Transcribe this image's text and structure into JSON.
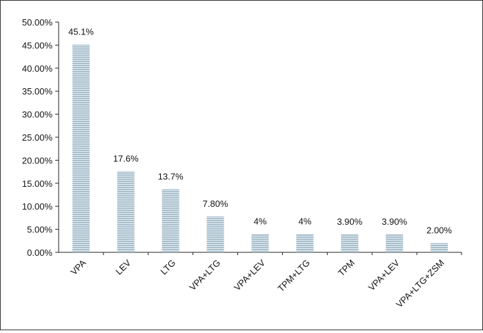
{
  "chart_data": {
    "type": "bar",
    "title": "",
    "xlabel": "",
    "ylabel": "",
    "ylim": [
      0,
      50
    ],
    "y_ticks": [
      "0.00%",
      "5.00%",
      "10.00%",
      "15.00%",
      "20.00%",
      "25.00%",
      "30.00%",
      "35.00%",
      "40.00%",
      "45.00%",
      "50.00%"
    ],
    "y_tick_values": [
      0,
      5,
      10,
      15,
      20,
      25,
      30,
      35,
      40,
      45,
      50
    ],
    "categories": [
      "VPA",
      "LEV",
      "LTG",
      "VPA+LTG",
      "VPA+LEV",
      "TPM+LTG",
      "TPM",
      "VPA+LEV",
      "VPA+LTG+ZSM"
    ],
    "values": [
      45.1,
      17.6,
      13.7,
      7.8,
      4,
      4,
      3.9,
      3.9,
      2.0
    ],
    "data_labels": [
      "45.1%",
      "17.6%",
      "13.7%",
      "7.80%",
      "4%",
      "4%",
      "3.90%",
      "3.90%",
      "2.00%"
    ],
    "grid": false,
    "legend": "none",
    "bar_color": "#a9bfcc",
    "bar_stripe_color": "#ffffff"
  }
}
